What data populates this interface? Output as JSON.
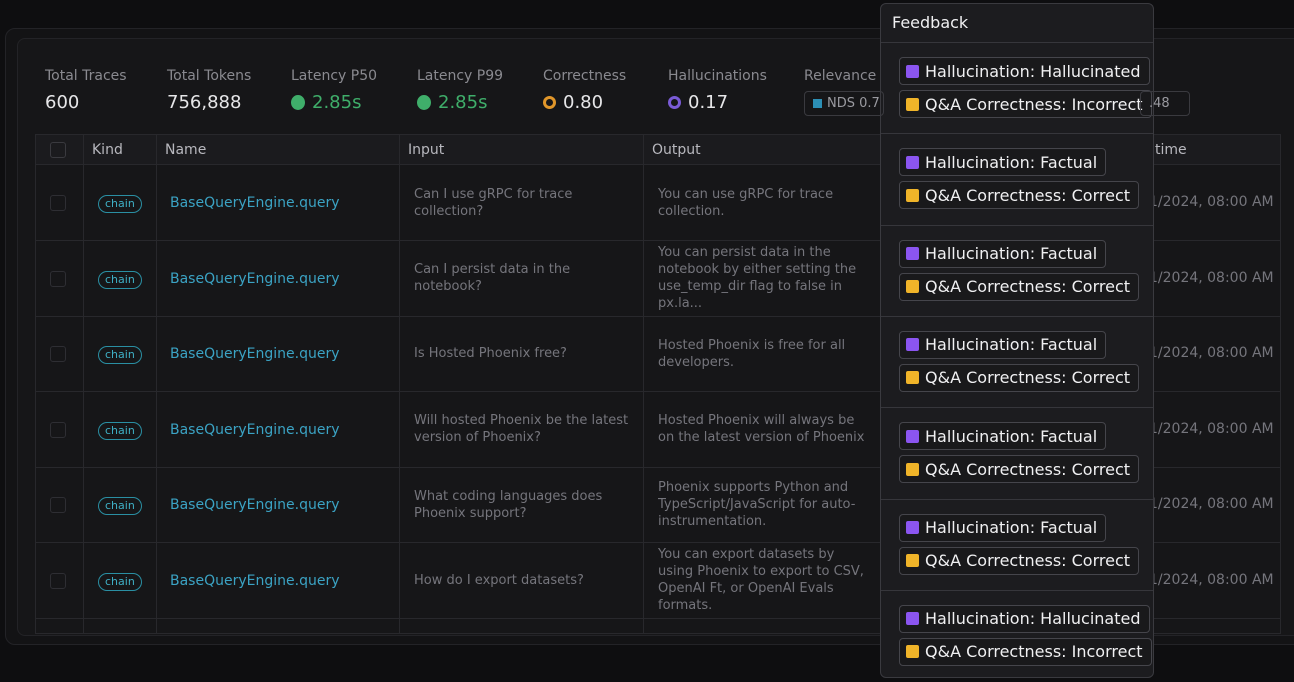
{
  "stats": [
    {
      "label": "Total Traces",
      "value": "600"
    },
    {
      "label": "Total Tokens",
      "value": "756,888"
    },
    {
      "label": "Latency P50",
      "value": "2.85s"
    },
    {
      "label": "Latency P99",
      "value": "2.85s"
    },
    {
      "label": "Correctness",
      "value": "0.80"
    },
    {
      "label": "Hallucinations",
      "value": "0.17"
    },
    {
      "label": "Relevance",
      "badges": [
        "NDS 0.7",
        ".48"
      ]
    }
  ],
  "table": {
    "columns": [
      "Kind",
      "Name",
      "Input",
      "Output",
      "time"
    ],
    "rows": [
      [
        "chain",
        "BaseQueryEngine.query",
        "Can I use gRPC for trace collection?",
        "You can use gRPC for trace collection.",
        "1/2024, 08:00 AM"
      ],
      [
        "chain",
        "BaseQueryEngine.query",
        "Can I persist data in the notebook?",
        "You can persist data in the notebook by either setting the use_temp_dir flag to false in px.la...",
        "1/2024, 08:00 AM"
      ],
      [
        "chain",
        "BaseQueryEngine.query",
        "Is Hosted Phoenix free?",
        "Hosted Phoenix is free for all developers.",
        "1/2024, 08:00 AM"
      ],
      [
        "chain",
        "BaseQueryEngine.query",
        "Will hosted Phoenix be the latest version of Phoenix?",
        "Hosted Phoenix will always be on the latest version of Phoenix",
        "1/2024, 08:00 AM"
      ],
      [
        "chain",
        "BaseQueryEngine.query",
        "What coding languages does Phoenix support?",
        "Phoenix supports Python and TypeScript/JavaScript for auto-instrumentation.",
        "1/2024, 08:00 AM"
      ],
      [
        "chain",
        "BaseQueryEngine.query",
        "How do I export datasets?",
        "You can export datasets by using Phoenix to export to CSV, OpenAI Ft, or OpenAI Evals formats.",
        "1/2024, 08:00 AM"
      ]
    ]
  },
  "feedback": {
    "title": "Feedback",
    "groups": [
      [
        "Hallucination: Hallucinated",
        "Q&A Correctness: Incorrect"
      ],
      [
        "Hallucination: Factual",
        "Q&A Correctness: Correct"
      ],
      [
        "Hallucination: Factual",
        "Q&A Correctness: Correct"
      ],
      [
        "Hallucination: Factual",
        "Q&A Correctness: Correct"
      ],
      [
        "Hallucination: Factual",
        "Q&A Correctness: Correct"
      ],
      [
        "Hallucination: Factual",
        "Q&A Correctness: Correct"
      ],
      [
        "Hallucination: Hallucinated",
        "Q&A Correctness: Incorrect"
      ]
    ]
  }
}
